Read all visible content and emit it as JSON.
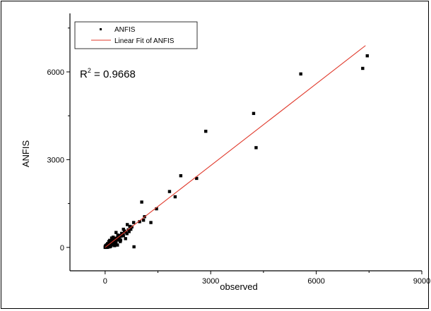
{
  "chart_data": {
    "type": "scatter",
    "title": "",
    "xlabel": "observed",
    "ylabel": "ANFIS",
    "xlim": [
      -1000,
      9000
    ],
    "ylim": [
      -800,
      8000
    ],
    "xticks": [
      0,
      3000,
      6000,
      9000
    ],
    "xtick_labels": [
      "0",
      "3000",
      "6000",
      "9000"
    ],
    "yticks": [
      0,
      3000,
      6000
    ],
    "ytick_labels": [
      "0",
      "3000",
      "6000"
    ],
    "grid": false,
    "legend_position": "top-left",
    "annotation": {
      "base": "R",
      "superscript": "2",
      "rest": " = 0.9668"
    },
    "series": [
      {
        "name": "ANFIS",
        "kind": "scatter",
        "marker": "square",
        "color": "#000000",
        "points": [
          [
            7450,
            6550
          ],
          [
            7320,
            6120
          ],
          [
            5560,
            5930
          ],
          [
            4220,
            4580
          ],
          [
            4290,
            3410
          ],
          [
            2860,
            3970
          ],
          [
            2600,
            2360
          ],
          [
            2150,
            2450
          ],
          [
            1830,
            1910
          ],
          [
            1990,
            1730
          ],
          [
            1460,
            1320
          ],
          [
            1300,
            850
          ],
          [
            1120,
            1050
          ],
          [
            1040,
            1550
          ],
          [
            1090,
            930
          ],
          [
            980,
            880
          ],
          [
            810,
            850
          ],
          [
            820,
            20
          ],
          [
            760,
            700
          ],
          [
            700,
            720
          ],
          [
            730,
            620
          ],
          [
            660,
            600
          ],
          [
            630,
            780
          ],
          [
            620,
            470
          ],
          [
            580,
            520
          ],
          [
            550,
            560
          ],
          [
            520,
            400
          ],
          [
            500,
            450
          ],
          [
            470,
            480
          ],
          [
            450,
            380
          ],
          [
            420,
            410
          ],
          [
            400,
            300
          ],
          [
            380,
            360
          ],
          [
            360,
            250
          ],
          [
            340,
            320
          ],
          [
            320,
            280
          ],
          [
            310,
            510
          ],
          [
            300,
            220
          ],
          [
            290,
            180
          ],
          [
            280,
            310
          ],
          [
            270,
            250
          ],
          [
            260,
            140
          ],
          [
            250,
            200
          ],
          [
            240,
            280
          ],
          [
            230,
            120
          ],
          [
            220,
            160
          ],
          [
            210,
            230
          ],
          [
            200,
            90
          ],
          [
            195,
            150
          ],
          [
            185,
            320
          ],
          [
            180,
            110
          ],
          [
            170,
            60
          ],
          [
            165,
            190
          ],
          [
            160,
            130
          ],
          [
            155,
            40
          ],
          [
            150,
            100
          ],
          [
            145,
            170
          ],
          [
            140,
            70
          ],
          [
            135,
            20
          ],
          [
            130,
            120
          ],
          [
            125,
            90
          ],
          [
            120,
            150
          ],
          [
            115,
            50
          ],
          [
            110,
            80
          ],
          [
            105,
            200
          ],
          [
            100,
            30
          ],
          [
            95,
            110
          ],
          [
            90,
            60
          ],
          [
            85,
            10
          ],
          [
            80,
            90
          ],
          [
            75,
            40
          ],
          [
            70,
            130
          ],
          [
            65,
            20
          ],
          [
            60,
            70
          ],
          [
            55,
            0
          ],
          [
            50,
            50
          ],
          [
            45,
            30
          ],
          [
            40,
            90
          ],
          [
            35,
            10
          ],
          [
            30,
            40
          ],
          [
            25,
            0
          ],
          [
            20,
            20
          ],
          [
            15,
            60
          ],
          [
            10,
            0
          ],
          [
            8,
            10
          ],
          [
            5,
            30
          ],
          [
            3,
            0
          ],
          [
            0,
            10
          ],
          [
            440,
            250
          ],
          [
            360,
            420
          ],
          [
            580,
            300
          ],
          [
            680,
            540
          ],
          [
            230,
            350
          ],
          [
            310,
            140
          ],
          [
            520,
            620
          ],
          [
            190,
            260
          ],
          [
            270,
            60
          ],
          [
            430,
            200
          ],
          [
            130,
            240
          ],
          [
            350,
            80
          ]
        ]
      },
      {
        "name": "Linear Fit of ANFIS",
        "kind": "line",
        "color": "#e0392b",
        "x": [
          0,
          7400
        ],
        "y": [
          0,
          6900
        ]
      }
    ]
  }
}
